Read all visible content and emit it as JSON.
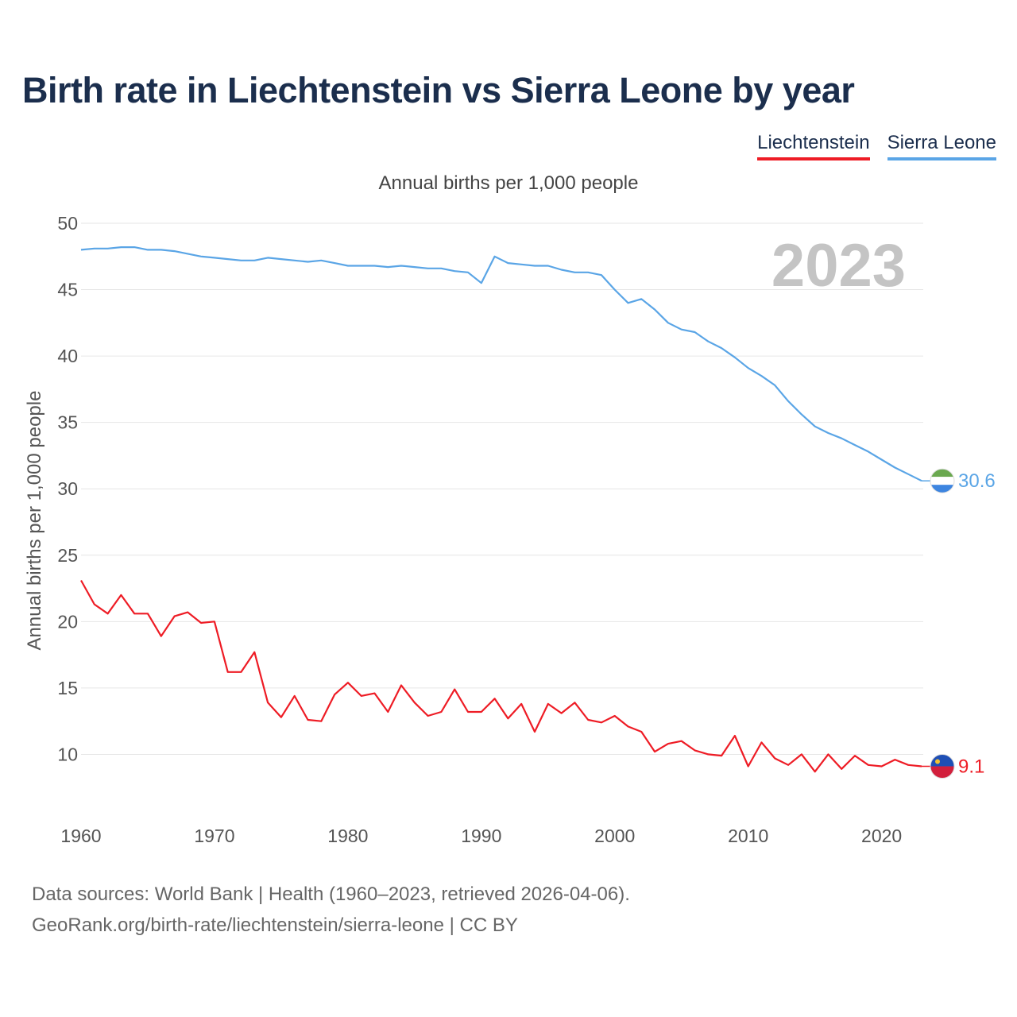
{
  "chart_data": {
    "type": "line",
    "title": "Birth rate in Liechtenstein vs Sierra Leone by year",
    "subtitle": "Annual births per 1,000 people",
    "ylabel": "Annual births per 1,000 people",
    "xlabel": "",
    "ylim": [
      5,
      50
    ],
    "xlim": [
      1960,
      2023
    ],
    "yticks": [
      10,
      15,
      20,
      25,
      30,
      35,
      40,
      45,
      50
    ],
    "xticks": [
      1960,
      1970,
      1980,
      1990,
      2000,
      2010,
      2020
    ],
    "highlight_year": "2023",
    "x": [
      1960,
      1961,
      1962,
      1963,
      1964,
      1965,
      1966,
      1967,
      1968,
      1969,
      1970,
      1971,
      1972,
      1973,
      1974,
      1975,
      1976,
      1977,
      1978,
      1979,
      1980,
      1981,
      1982,
      1983,
      1984,
      1985,
      1986,
      1987,
      1988,
      1989,
      1990,
      1991,
      1992,
      1993,
      1994,
      1995,
      1996,
      1997,
      1998,
      1999,
      2000,
      2001,
      2002,
      2003,
      2004,
      2005,
      2006,
      2007,
      2008,
      2009,
      2010,
      2011,
      2012,
      2013,
      2014,
      2015,
      2016,
      2017,
      2018,
      2019,
      2020,
      2021,
      2022,
      2023
    ],
    "series": [
      {
        "name": "Liechtenstein",
        "color": "#ee1c25",
        "end_label": "9.1",
        "values": [
          23.1,
          21.3,
          20.6,
          22.0,
          20.6,
          20.6,
          18.9,
          20.4,
          20.7,
          19.9,
          20.0,
          16.2,
          16.2,
          17.7,
          13.9,
          12.8,
          14.4,
          12.6,
          12.5,
          14.5,
          15.4,
          14.4,
          14.6,
          13.2,
          15.2,
          13.9,
          12.9,
          13.2,
          14.9,
          13.2,
          13.2,
          14.2,
          12.7,
          13.8,
          11.7,
          13.8,
          13.1,
          13.9,
          12.6,
          12.4,
          12.9,
          12.1,
          11.7,
          10.2,
          10.8,
          11.0,
          10.3,
          10.0,
          9.9,
          11.4,
          9.1,
          10.9,
          9.7,
          9.2,
          10.0,
          8.7,
          10.0,
          8.9,
          9.9,
          9.2,
          9.1,
          9.6,
          9.2,
          9.1
        ]
      },
      {
        "name": "Sierra Leone",
        "color": "#5aa5e6",
        "end_label": "30.6",
        "values": [
          48.0,
          48.1,
          48.1,
          48.2,
          48.2,
          48.0,
          48.0,
          47.9,
          47.7,
          47.5,
          47.4,
          47.3,
          47.2,
          47.2,
          47.4,
          47.3,
          47.2,
          47.1,
          47.2,
          47.0,
          46.8,
          46.8,
          46.8,
          46.7,
          46.8,
          46.7,
          46.6,
          46.6,
          46.4,
          46.3,
          45.5,
          47.5,
          47.0,
          46.9,
          46.8,
          46.8,
          46.5,
          46.3,
          46.3,
          46.1,
          45.0,
          44.0,
          44.3,
          43.5,
          42.5,
          42.0,
          41.8,
          41.1,
          40.6,
          39.9,
          39.1,
          38.5,
          37.8,
          36.6,
          35.6,
          34.7,
          34.2,
          33.8,
          33.3,
          32.8,
          32.2,
          31.6,
          31.1,
          30.6
        ]
      }
    ]
  },
  "legend": [
    "Liechtenstein",
    "Sierra Leone"
  ],
  "footer": {
    "line1": "Data sources: World Bank | Health (1960–2023, retrieved 2026-04-06).",
    "line2": "GeoRank.org/birth-rate/liechtenstein/sierra-leone | CC BY"
  }
}
